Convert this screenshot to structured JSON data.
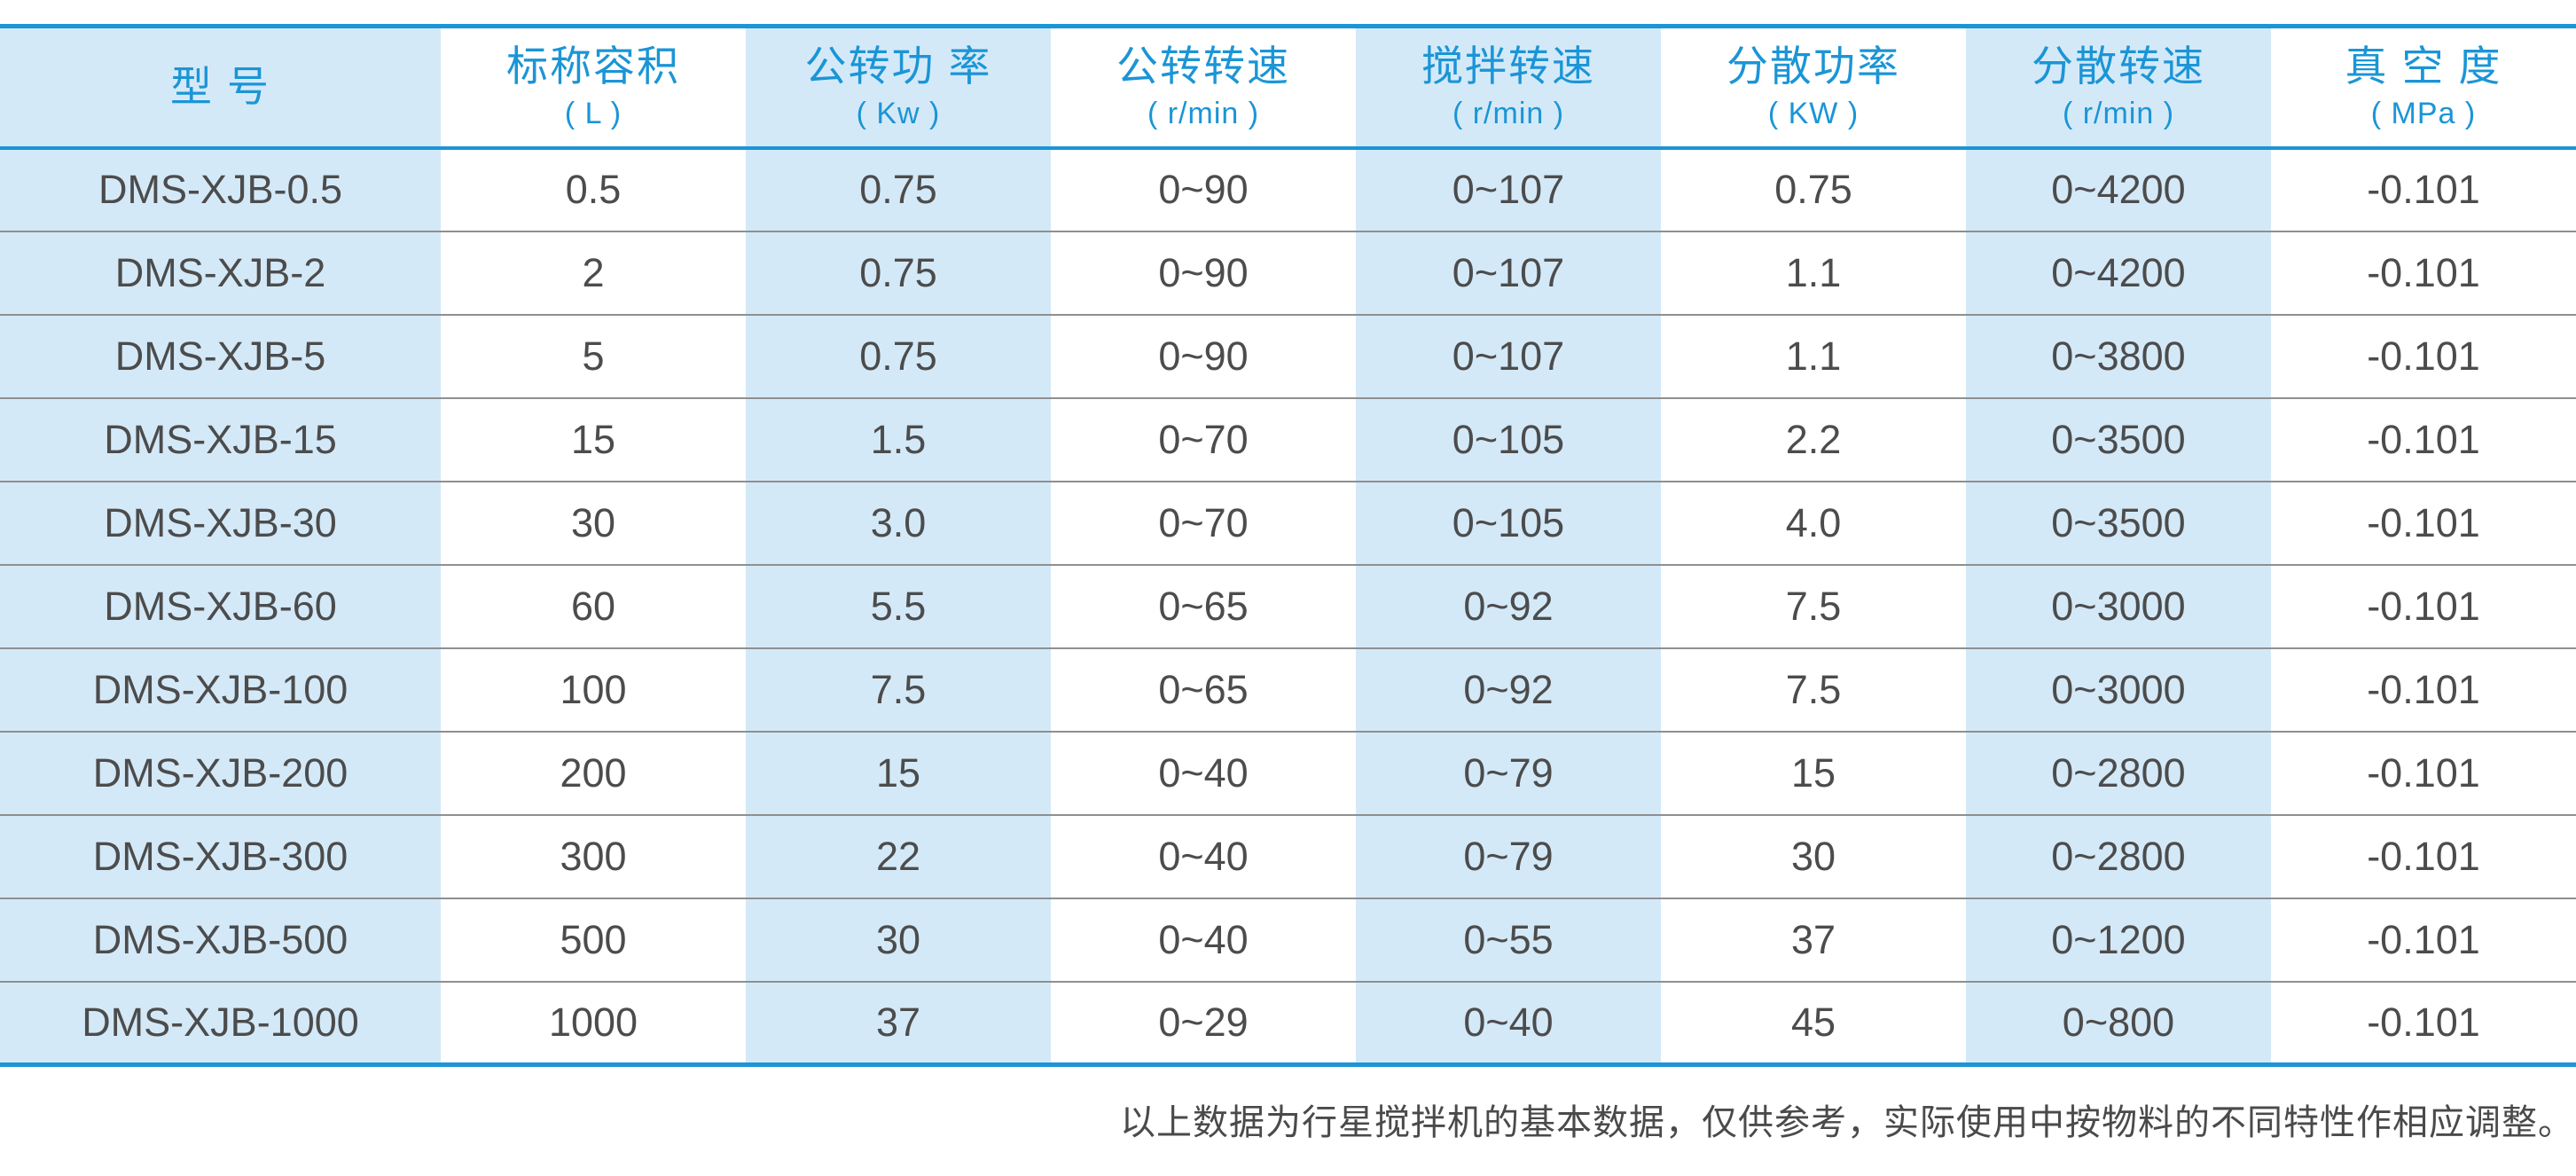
{
  "colors": {
    "accent": "#1b95d6",
    "band": "#d4e9f8",
    "text": "#4c4c4c",
    "separator": "#8f8f8f",
    "note": "#4a4a4a"
  },
  "table": {
    "columns": [
      {
        "label": "型  号",
        "unit": ""
      },
      {
        "label": "标称容积",
        "unit": "( L )"
      },
      {
        "label": "公转功 率",
        "unit": "( Kw )"
      },
      {
        "label": "公转转速",
        "unit": "( r/min )"
      },
      {
        "label": "搅拌转速",
        "unit": "( r/min )"
      },
      {
        "label": "分散功率",
        "unit": "( KW )"
      },
      {
        "label": "分散转速",
        "unit": "( r/min )"
      },
      {
        "label": "真 空 度",
        "unit": "( MPa )"
      }
    ],
    "rows": [
      [
        "DMS-XJB-0.5",
        "0.5",
        "0.75",
        "0~90",
        "0~107",
        "0.75",
        "0~4200",
        "-0.101"
      ],
      [
        "DMS-XJB-2",
        "2",
        "0.75",
        "0~90",
        "0~107",
        "1.1",
        "0~4200",
        "-0.101"
      ],
      [
        "DMS-XJB-5",
        "5",
        "0.75",
        "0~90",
        "0~107",
        "1.1",
        "0~3800",
        "-0.101"
      ],
      [
        "DMS-XJB-15",
        "15",
        "1.5",
        "0~70",
        "0~105",
        "2.2",
        "0~3500",
        "-0.101"
      ],
      [
        "DMS-XJB-30",
        "30",
        "3.0",
        "0~70",
        "0~105",
        "4.0",
        "0~3500",
        "-0.101"
      ],
      [
        "DMS-XJB-60",
        "60",
        "5.5",
        "0~65",
        "0~92",
        "7.5",
        "0~3000",
        "-0.101"
      ],
      [
        "DMS-XJB-100",
        "100",
        "7.5",
        "0~65",
        "0~92",
        "7.5",
        "0~3000",
        "-0.101"
      ],
      [
        "DMS-XJB-200",
        "200",
        "15",
        "0~40",
        "0~79",
        "15",
        "0~2800",
        "-0.101"
      ],
      [
        "DMS-XJB-300",
        "300",
        "22",
        "0~40",
        "0~79",
        "30",
        "0~2800",
        "-0.101"
      ],
      [
        "DMS-XJB-500",
        "500",
        "30",
        "0~40",
        "0~55",
        "37",
        "0~1200",
        "-0.101"
      ],
      [
        "DMS-XJB-1000",
        "1000",
        "37",
        "0~29",
        "0~40",
        "45",
        "0~800",
        "-0.101"
      ]
    ]
  },
  "footer": {
    "note": "以上数据为行星搅拌机的基本数据，仅供参考，实际使用中按物料的不同特性作相应调整。"
  }
}
